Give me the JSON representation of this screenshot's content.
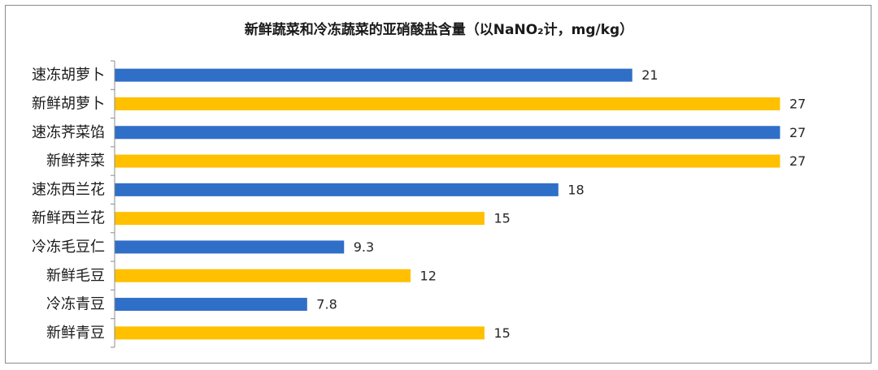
{
  "chart_data": {
    "type": "bar",
    "orientation": "horizontal",
    "title": "新鲜蔬菜和冷冻蔬菜的亚硝酸盐含量（以NaNO₂计，mg/kg）",
    "categories": [
      "速冻胡萝卜",
      "新鲜胡萝卜",
      "速冻荠菜馅",
      "新鲜荠菜",
      "速冻西兰花",
      "新鲜西兰花",
      "冷冻毛豆仁",
      "新鲜毛豆",
      "冷冻青豆",
      "新鲜青豆"
    ],
    "values": [
      21,
      27,
      27,
      27,
      18,
      15,
      9.3,
      12,
      7.8,
      15
    ],
    "value_labels": [
      "21",
      "27",
      "27",
      "27",
      "18",
      "15",
      "9.3",
      "12",
      "7.8",
      "15"
    ],
    "bar_colors": [
      "#2f6fc8",
      "#ffc000",
      "#2f6fc8",
      "#ffc000",
      "#2f6fc8",
      "#ffc000",
      "#2f6fc8",
      "#ffc000",
      "#2f6fc8",
      "#ffc000"
    ],
    "xlim": [
      0,
      27
    ],
    "xlabel": "",
    "ylabel": "",
    "grid": false,
    "legend": "none"
  }
}
